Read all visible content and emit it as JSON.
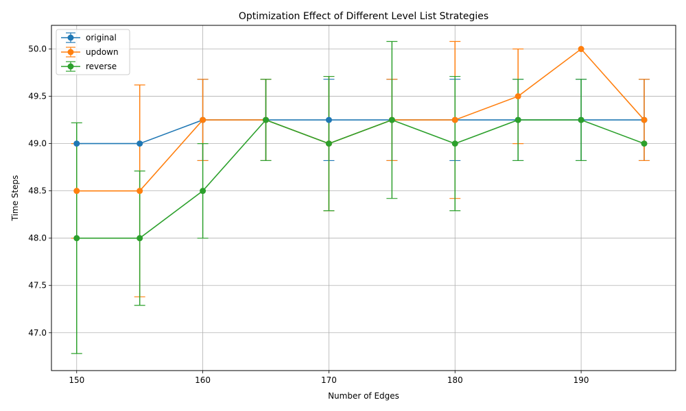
{
  "chart_data": {
    "type": "line",
    "title": "Optimization Effect of Different Level List Strategies",
    "xlabel": "Number of Edges",
    "ylabel": "Time Steps",
    "x": [
      150,
      155,
      160,
      165,
      170,
      175,
      180,
      185,
      190,
      195
    ],
    "xlim": [
      148,
      197.5
    ],
    "ylim": [
      46.6,
      50.25
    ],
    "xticks": [
      150,
      160,
      170,
      180,
      190
    ],
    "yticks": [
      47.0,
      47.5,
      48.0,
      48.5,
      49.0,
      49.5,
      50.0
    ],
    "grid": true,
    "legend": "upper-left",
    "error_bars": true,
    "series": [
      {
        "name": "original",
        "color": "#1f77b4",
        "values": [
          49.0,
          49.0,
          49.25,
          49.25,
          49.25,
          49.25,
          49.25,
          49.25,
          49.25,
          49.25
        ],
        "errors": [
          0.0,
          0.0,
          0.43,
          0.43,
          0.43,
          0.43,
          0.43,
          0.43,
          0.43,
          0.43
        ]
      },
      {
        "name": "updown",
        "color": "#ff7f0e",
        "values": [
          48.5,
          48.5,
          49.25,
          49.25,
          49.0,
          49.25,
          49.25,
          49.5,
          50.0,
          49.25
        ],
        "errors": [
          0.5,
          1.12,
          0.43,
          0.43,
          0.71,
          0.43,
          0.83,
          0.5,
          0.0,
          0.43
        ]
      },
      {
        "name": "reverse",
        "color": "#2ca02c",
        "values": [
          48.0,
          48.0,
          48.5,
          49.25,
          49.0,
          49.25,
          49.0,
          49.25,
          49.25,
          49.0
        ],
        "errors": [
          1.22,
          0.71,
          0.5,
          0.43,
          0.71,
          0.83,
          0.71,
          0.43,
          0.43,
          0.0
        ]
      }
    ]
  }
}
